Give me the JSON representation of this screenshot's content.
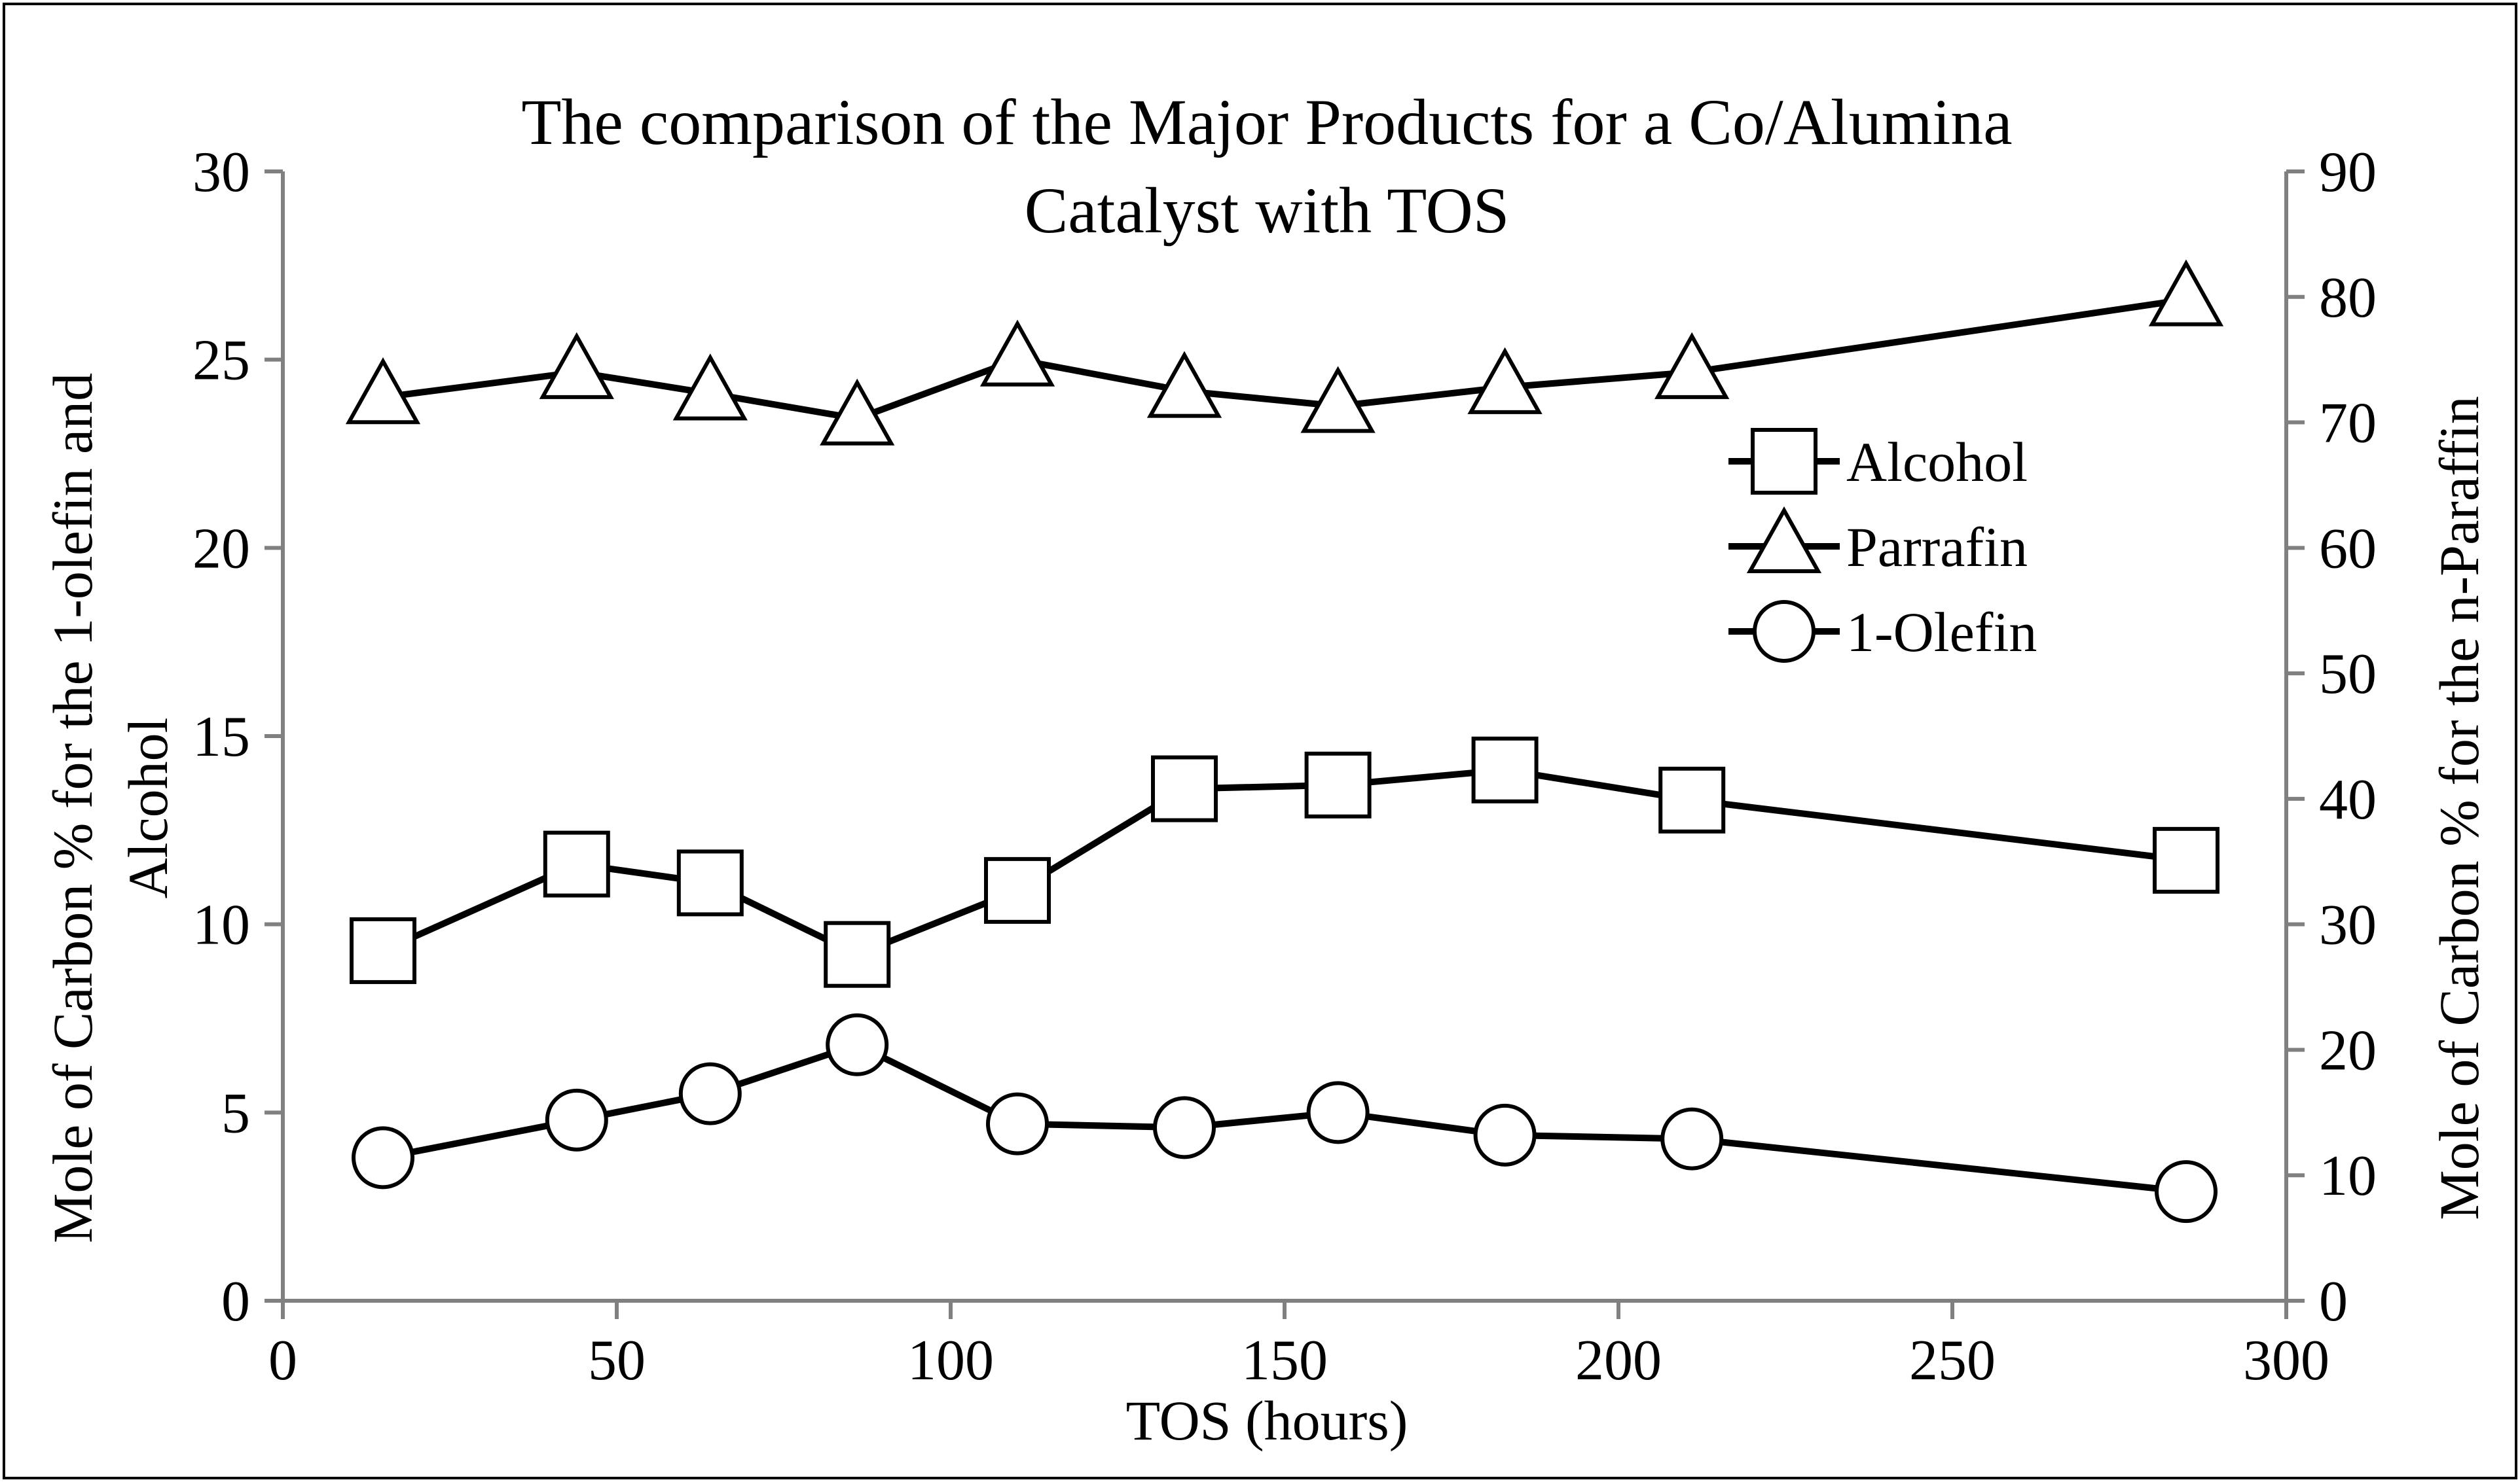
{
  "chart_data": {
    "type": "line",
    "title": "The comparison of the Major Products for a Co/Alumina Catalyst with TOS",
    "title_lines": [
      "The comparison of the Major Products for a Co/Alumina",
      "Catalyst with TOS"
    ],
    "xlabel": "TOS (hours)",
    "ylabel_left_lines": [
      "Mole of Carbon % for the 1-olefin and",
      "Alcohol"
    ],
    "ylabel_right": "Mole of Carbon % for the n-Paraffin",
    "xlim": [
      0,
      300
    ],
    "ylim_left": [
      0,
      30
    ],
    "ylim_right": [
      0,
      90
    ],
    "x_ticks": [
      "0",
      "50",
      "100",
      "150",
      "200",
      "250",
      "300"
    ],
    "y_left_ticks": [
      "0",
      "5",
      "10",
      "15",
      "20",
      "25",
      "30"
    ],
    "y_right_ticks": [
      "0",
      "10",
      "20",
      "30",
      "40",
      "50",
      "60",
      "70",
      "80",
      "90"
    ],
    "grid": false,
    "legend_position": "top-right",
    "series": [
      {
        "name": "Alcohol",
        "axis": "left",
        "marker": "square",
        "x": [
          15,
          44,
          64,
          86,
          110,
          135,
          158,
          183,
          211,
          285
        ],
        "values": [
          9.3,
          11.6,
          11.1,
          9.2,
          10.9,
          13.6,
          13.7,
          14.1,
          13.3,
          11.7
        ]
      },
      {
        "name": "Parrafin",
        "axis": "right",
        "marker": "triangle",
        "x": [
          15,
          44,
          64,
          86,
          110,
          135,
          158,
          183,
          211,
          285
        ],
        "values": [
          72,
          74,
          72.3,
          70.3,
          75,
          72.5,
          71.3,
          72.8,
          74,
          79.8
        ]
      },
      {
        "name": "1-Olefin",
        "axis": "left",
        "marker": "circle",
        "x": [
          15,
          44,
          64,
          86,
          110,
          135,
          158,
          183,
          211,
          285
        ],
        "values": [
          3.8,
          4.8,
          5.5,
          6.8,
          4.7,
          4.6,
          5.0,
          4.4,
          4.3,
          2.9
        ]
      }
    ]
  }
}
